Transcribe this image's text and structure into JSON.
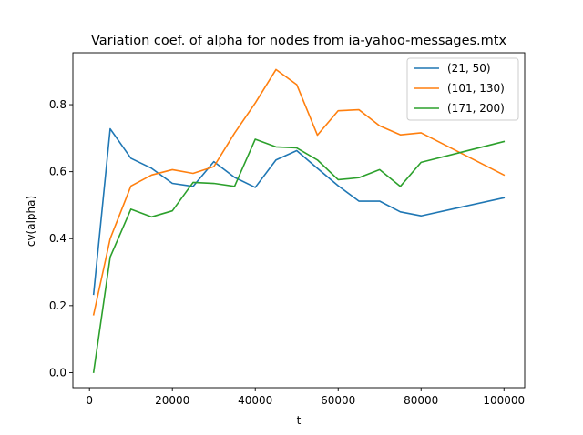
{
  "chart_data": {
    "type": "line",
    "title": "Variation coef. of alpha for nodes from ia-yahoo-messages.mtx",
    "xlabel": "t",
    "ylabel": "cv(alpha)",
    "xlim": [
      -4000,
      105000
    ],
    "ylim": [
      -0.045,
      0.955
    ],
    "xticks": [
      0,
      20000,
      40000,
      60000,
      80000,
      100000
    ],
    "yticks": [
      0.0,
      0.2,
      0.4,
      0.6,
      0.8
    ],
    "ytick_labels": [
      "0.0",
      "0.2",
      "0.4",
      "0.6",
      "0.8"
    ],
    "grid": false,
    "legend_position": "top-right",
    "series": [
      {
        "name": "(21, 50)",
        "color": "#1f77b4",
        "x": [
          1000,
          5000,
          10000,
          15000,
          20000,
          25000,
          30000,
          35000,
          40000,
          45000,
          50000,
          55000,
          60000,
          65000,
          70000,
          75000,
          80000,
          100000
        ],
        "y": [
          0.234,
          0.728,
          0.64,
          0.61,
          0.565,
          0.556,
          0.63,
          0.583,
          0.553,
          0.635,
          0.663,
          0.61,
          0.558,
          0.512,
          0.512,
          0.48,
          0.468,
          0.522
        ]
      },
      {
        "name": "(101, 130)",
        "color": "#ff7f0e",
        "x": [
          1000,
          5000,
          10000,
          15000,
          20000,
          25000,
          30000,
          35000,
          40000,
          45000,
          50000,
          55000,
          60000,
          65000,
          70000,
          75000,
          80000,
          100000
        ],
        "y": [
          0.173,
          0.4,
          0.557,
          0.59,
          0.606,
          0.595,
          0.615,
          0.715,
          0.805,
          0.905,
          0.86,
          0.709,
          0.782,
          0.785,
          0.737,
          0.71,
          0.716,
          0.59
        ]
      },
      {
        "name": "(171, 200)",
        "color": "#2ca02c",
        "x": [
          1000,
          5000,
          10000,
          15000,
          20000,
          25000,
          30000,
          35000,
          40000,
          45000,
          50000,
          55000,
          60000,
          65000,
          70000,
          75000,
          80000,
          100000
        ],
        "y": [
          0.001,
          0.345,
          0.488,
          0.465,
          0.483,
          0.568,
          0.565,
          0.556,
          0.697,
          0.674,
          0.671,
          0.635,
          0.576,
          0.582,
          0.606,
          0.556,
          0.628,
          0.69
        ]
      }
    ]
  }
}
